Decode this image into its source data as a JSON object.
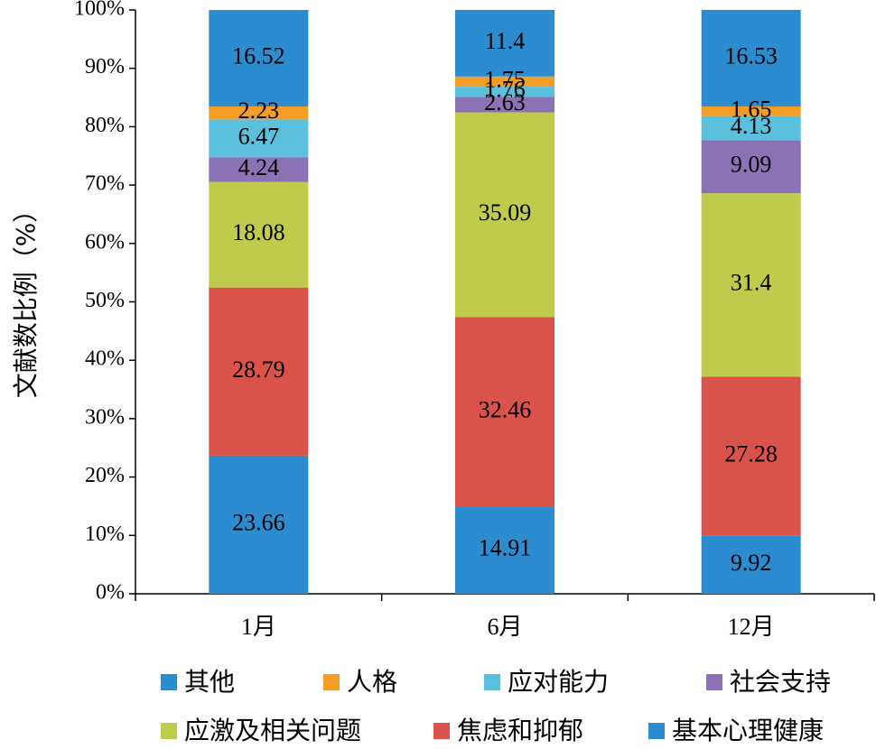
{
  "chart_data": {
    "type": "bar",
    "stacked": true,
    "categories": [
      "1月",
      "6月",
      "12月"
    ],
    "ylabel": "文献数比例（%）",
    "xlabel": "",
    "ylim": [
      0,
      100
    ],
    "y_ticks": [
      "0%",
      "10%",
      "20%",
      "30%",
      "40%",
      "50%",
      "60%",
      "70%",
      "80%",
      "90%",
      "100%"
    ],
    "series": [
      {
        "name": "基本心理健康",
        "color": "#2b8ccf",
        "values": [
          23.66,
          14.91,
          9.92
        ],
        "labels": [
          "23.66",
          "14.91",
          "9.92"
        ]
      },
      {
        "name": "焦虑和抑郁",
        "color": "#d9534a",
        "values": [
          28.79,
          32.46,
          27.28
        ],
        "labels": [
          "28.79",
          "32.46",
          "27.28"
        ]
      },
      {
        "name": "应激及相关问题",
        "color": "#bfcc4b",
        "values": [
          18.08,
          35.09,
          31.4
        ],
        "labels": [
          "18.08",
          "35.09",
          "31.4"
        ]
      },
      {
        "name": "社会支持",
        "color": "#8b72b4",
        "values": [
          4.24,
          2.63,
          9.09
        ],
        "labels": [
          "4.24",
          "2.63",
          "9.09"
        ]
      },
      {
        "name": "应对能力",
        "color": "#5bc0de",
        "values": [
          6.47,
          1.76,
          4.13
        ],
        "labels": [
          "6.47",
          "1.76",
          "4.13"
        ]
      },
      {
        "name": "人格",
        "color": "#f39c26",
        "values": [
          2.23,
          1.75,
          1.65
        ],
        "labels": [
          "2.23",
          "1.75",
          "1.65"
        ]
      },
      {
        "name": "其他",
        "color": "#2b8ccf",
        "values": [
          16.52,
          11.4,
          16.53
        ],
        "labels": [
          "16.52",
          "11.4",
          "16.53"
        ]
      }
    ],
    "legend": {
      "placement": "bottom",
      "order": [
        "其他",
        "人格",
        "应对能力",
        "社会支持",
        "应激及相关问题",
        "焦虑和抑郁",
        "基本心理健康"
      ]
    },
    "grid": false
  }
}
